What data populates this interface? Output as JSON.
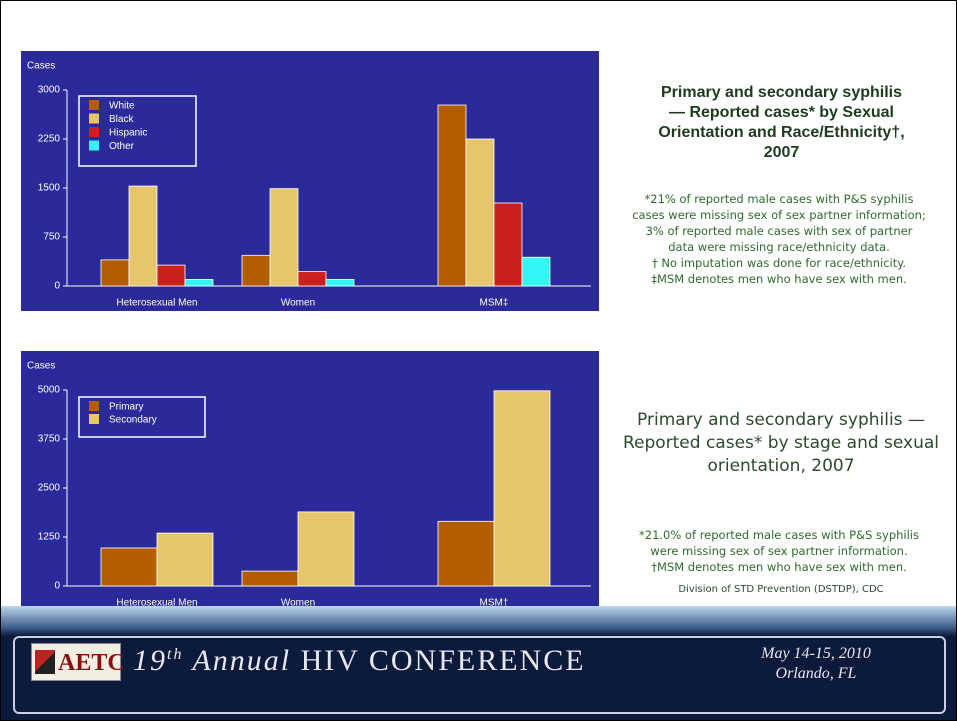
{
  "chart_data": [
    {
      "type": "bar",
      "y_label": "Cases",
      "title": [
        "Primary and secondary syphilis",
        "— Reported cases* by Sexual",
        "Orientation and Race/Ethnicity†,",
        "2007"
      ],
      "notes": [
        "*21% of reported male cases with P&S syphilis",
        "cases were missing sex of sex partner information;",
        "3% of reported male cases with sex of partner",
        "data were missing race/ethnicity data.",
        "† No imputation was done for race/ethnicity.",
        "‡MSM denotes men who have sex with men."
      ],
      "categories": [
        "Heterosexual Men",
        "Women",
        "MSM‡"
      ],
      "series": [
        {
          "name": "White",
          "color": "#b35c00",
          "values": [
            400,
            470,
            2770
          ]
        },
        {
          "name": "Black",
          "color": "#e6c56c",
          "values": [
            1530,
            1490,
            2250
          ]
        },
        {
          "name": "Hispanic",
          "color": "#cc2020",
          "values": [
            320,
            220,
            1270
          ]
        },
        {
          "name": "Other",
          "color": "#33f5f5",
          "values": [
            100,
            100,
            440
          ]
        }
      ],
      "ylim": [
        0,
        3000
      ],
      "yticks": [
        0,
        750,
        1500,
        2250,
        3000
      ]
    },
    {
      "type": "bar",
      "y_label": "Cases",
      "title": [
        "Primary and secondary syphilis —",
        "Reported cases* by stage and sexual",
        "orientation, 2007"
      ],
      "notes": [
        "*21.0% of reported male cases with P&S syphilis",
        "were missing sex of sex partner information.",
        "†MSM denotes men who have sex with men."
      ],
      "categories": [
        "Heterosexual Men",
        "Women",
        "MSM†"
      ],
      "series": [
        {
          "name": "Primary",
          "color": "#b35c00",
          "values": [
            970,
            380,
            1650
          ]
        },
        {
          "name": "Secondary",
          "color": "#e6c56c",
          "values": [
            1350,
            1890,
            4980
          ]
        }
      ],
      "ylim": [
        0,
        5000
      ],
      "yticks": [
        0,
        1250,
        2500,
        3750,
        5000
      ]
    }
  ],
  "source": "Division of STD Prevention (DSTDP), CDC",
  "footer": {
    "logo": "AETC",
    "number": "19",
    "ordinal": "th",
    "annual": "Annual",
    "name": "HIV CONFERENCE",
    "date": "May 14-15, 2010",
    "place": "Orlando, FL"
  }
}
